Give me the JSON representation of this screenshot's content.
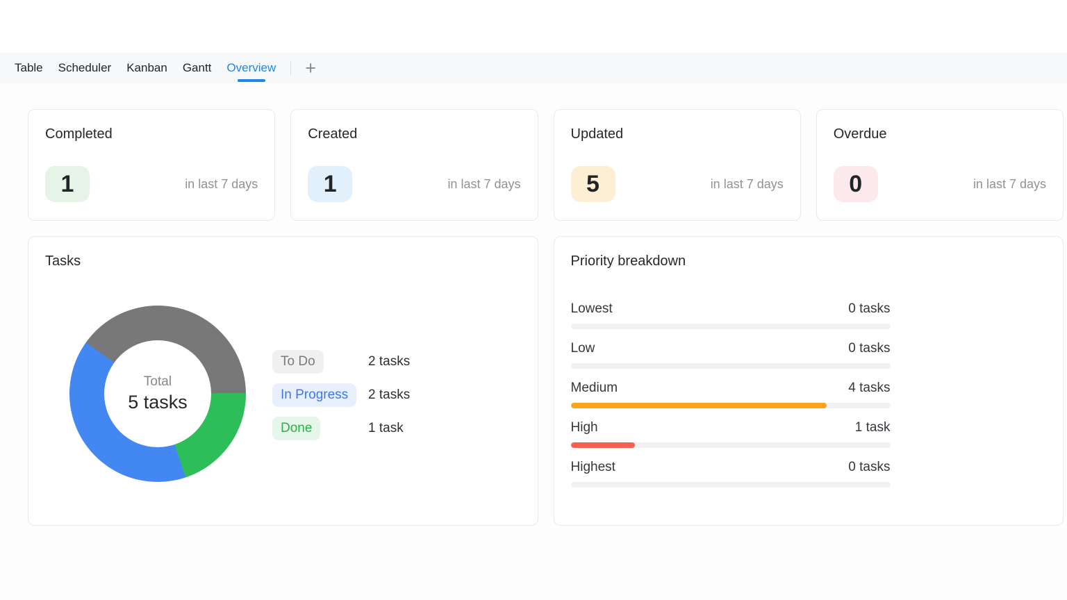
{
  "tab_bar": {
    "tabs": [
      {
        "label": "Table"
      },
      {
        "label": "Scheduler"
      },
      {
        "label": "Kanban"
      },
      {
        "label": "Gantt"
      },
      {
        "label": "Overview"
      }
    ],
    "active_tab": "Overview",
    "active_color": "#1e87e5",
    "add_button_label": "+"
  },
  "stat_cards": [
    {
      "title": "Completed",
      "value": "1",
      "period": "in last 7 days",
      "badge_bg": "#e6f4e8"
    },
    {
      "title": "Created",
      "value": "1",
      "period": "in last 7 days",
      "badge_bg": "#e2f0fc"
    },
    {
      "title": "Updated",
      "value": "5",
      "period": "in last 7 days",
      "badge_bg": "#fcefd4"
    },
    {
      "title": "Overdue",
      "value": "0",
      "period": "in last 7 days",
      "badge_bg": "#fbe9ec"
    }
  ],
  "tasks_panel": {
    "title": "Tasks",
    "center_label": "Total",
    "center_value": "5 tasks",
    "legend": [
      {
        "label": "To Do",
        "value_label": "2 tasks",
        "pill_bg": "#f0f0f0",
        "pill_color": "#7a7a7a"
      },
      {
        "label": "In Progress",
        "value_label": "2 tasks",
        "pill_bg": "#e8effc",
        "pill_color": "#3c78e8"
      },
      {
        "label": "Done",
        "value_label": "1 task",
        "pill_bg": "#e7f6eb",
        "pill_color": "#2aaf4d"
      }
    ]
  },
  "priority_panel": {
    "title": "Priority breakdown",
    "rows": [
      {
        "label": "Lowest",
        "value_label": "0 tasks"
      },
      {
        "label": "Low",
        "value_label": "0 tasks"
      },
      {
        "label": "Medium",
        "value_label": "4 tasks"
      },
      {
        "label": "High",
        "value_label": "1 task"
      },
      {
        "label": "Highest",
        "value_label": "0 tasks"
      }
    ]
  },
  "chart_data": [
    {
      "type": "pie",
      "title": "Tasks",
      "donut": true,
      "center_label": "Total",
      "center_value": "5 tasks",
      "total": 5,
      "start_angle_deg": -54.5,
      "segments_clockwise": [
        {
          "label": "To Do",
          "value": 2,
          "color": "#787878"
        },
        {
          "label": "Done",
          "value": 1,
          "color": "#2dbd59"
        },
        {
          "label": "In Progress",
          "value": 2,
          "color": "#4387f2"
        }
      ],
      "legend_position": "right"
    },
    {
      "type": "bar",
      "title": "Priority breakdown",
      "orientation": "horizontal",
      "categories": [
        "Lowest",
        "Low",
        "Medium",
        "High",
        "Highest"
      ],
      "values": [
        0,
        0,
        4,
        1,
        0
      ],
      "value_labels": [
        "0 tasks",
        "0 tasks",
        "4 tasks",
        "1 task",
        "0 tasks"
      ],
      "max": 5,
      "fill_colors": [
        null,
        null,
        "#faa31b",
        "#f7604d",
        null
      ],
      "track_color": "#f1f1f2"
    }
  ]
}
